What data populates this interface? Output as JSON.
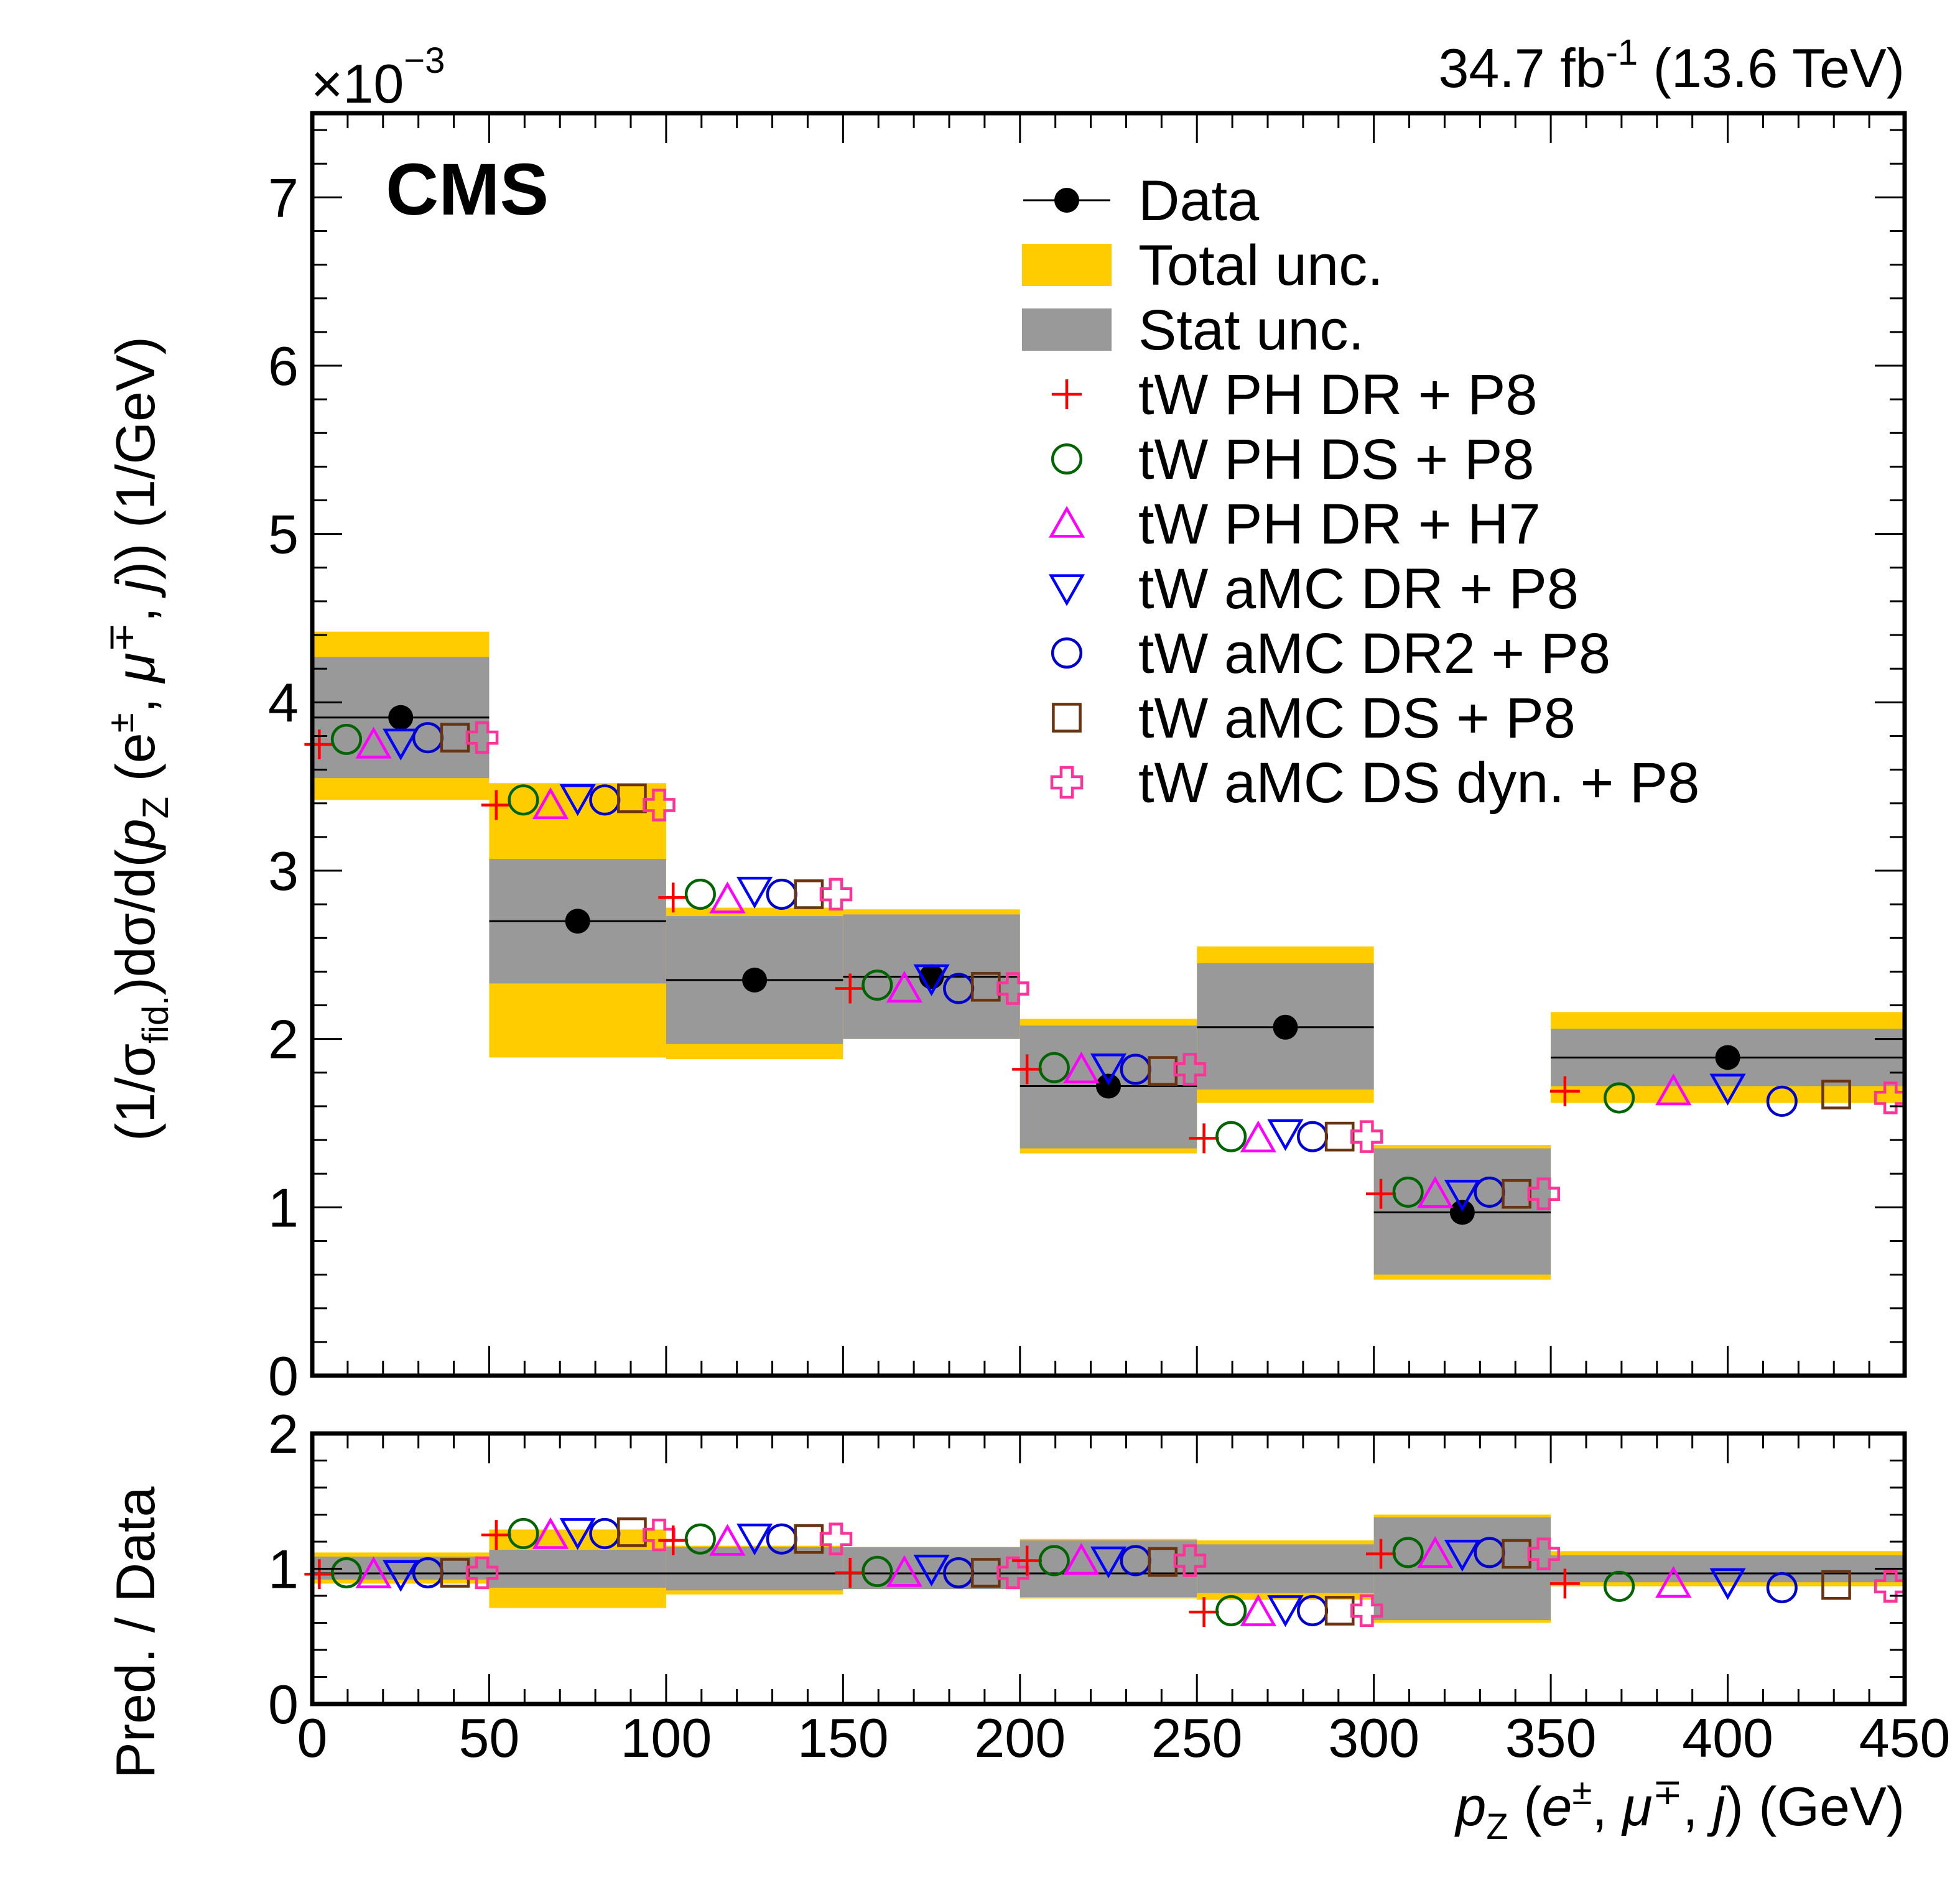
{
  "header": {
    "cms_label": "CMS",
    "lumi_label": "34.7 fb",
    "lumi_sup": "-1",
    "energy_label": " (13.6 TeV)",
    "exponent_base": "×10",
    "exponent_sup": "−3"
  },
  "colors": {
    "total_unc": "#ffcc00",
    "stat_unc": "#999999",
    "data": "#000000",
    "tw_ph_dr_p8": "#ff0000",
    "tw_ph_ds_p8": "#006400",
    "tw_ph_dr_h7": "#ff00ff",
    "tw_amc_dr_p8": "#0000ff",
    "tw_amc_dr2_p8": "#0000cd",
    "tw_amc_ds_p8": "#6b3410",
    "tw_amc_dsdyn_p8": "#ff3399"
  },
  "chart_data": {
    "type": "scatter",
    "xlabel": "p_Z (e±, μ∓, j) (GeV)",
    "xlim": [
      0,
      450
    ],
    "x_ticks": [
      "0",
      "50",
      "100",
      "150",
      "200",
      "250",
      "300",
      "350",
      "400",
      "450"
    ],
    "bin_edges": [
      0,
      50,
      100,
      150,
      200,
      250,
      300,
      350,
      450
    ],
    "top": {
      "ylabel": "(1/σ_fid.)dσ/d(p_Z (e±, μ∓, j)) (1/GeV)",
      "ylim": [
        0,
        7.5
      ],
      "y_ticks": [
        "0",
        "1",
        "2",
        "3",
        "4",
        "5",
        "6",
        "7"
      ],
      "data": [
        3.91,
        2.7,
        2.35,
        2.37,
        1.72,
        2.07,
        0.97,
        1.89
      ],
      "total_unc": [
        [
          3.42,
          4.42
        ],
        [
          1.89,
          3.52
        ],
        [
          1.88,
          2.78
        ],
        [
          2.0,
          2.77
        ],
        [
          1.32,
          2.12
        ],
        [
          1.62,
          2.55
        ],
        [
          0.57,
          1.37
        ],
        [
          1.62,
          2.16
        ]
      ],
      "stat_unc": [
        [
          3.55,
          4.27
        ],
        [
          2.33,
          3.07
        ],
        [
          1.97,
          2.73
        ],
        [
          2.0,
          2.74
        ],
        [
          1.35,
          2.08
        ],
        [
          1.7,
          2.45
        ],
        [
          0.6,
          1.35
        ],
        [
          1.72,
          2.06
        ]
      ],
      "series": [
        {
          "name": "tW PH DR + P8",
          "marker": "plus",
          "color_key": "tw_ph_dr_p8",
          "values": [
            3.75,
            3.39,
            2.84,
            2.3,
            1.82,
            1.41,
            1.08,
            1.69
          ]
        },
        {
          "name": "tW PH DS + P8",
          "marker": "circle",
          "color_key": "tw_ph_ds_p8",
          "values": [
            3.78,
            3.42,
            2.86,
            2.32,
            1.83,
            1.42,
            1.09,
            1.65
          ]
        },
        {
          "name": "tW PH DR + H7",
          "marker": "triangle-up",
          "color_key": "tw_ph_dr_h7",
          "values": [
            3.75,
            3.39,
            2.83,
            2.3,
            1.82,
            1.41,
            1.08,
            1.69
          ]
        },
        {
          "name": "tW aMC DR + P8",
          "marker": "triangle-down",
          "color_key": "tw_amc_dr_p8",
          "values": [
            3.76,
            3.43,
            2.88,
            2.36,
            1.83,
            1.44,
            1.08,
            1.71
          ]
        },
        {
          "name": "tW aMC DR2 + P8",
          "marker": "circle",
          "color_key": "tw_amc_dr2_p8",
          "values": [
            3.79,
            3.42,
            2.86,
            2.3,
            1.82,
            1.42,
            1.09,
            1.63
          ]
        },
        {
          "name": "tW aMC DS + P8",
          "marker": "square",
          "color_key": "tw_amc_ds_p8",
          "values": [
            3.79,
            3.43,
            2.86,
            2.31,
            1.81,
            1.42,
            1.08,
            1.67
          ]
        },
        {
          "name": "tW aMC DS dyn. + P8",
          "marker": "cross",
          "color_key": "tw_amc_dsdyn_p8",
          "values": [
            3.79,
            3.39,
            2.86,
            2.3,
            1.82,
            1.42,
            1.08,
            1.65
          ]
        }
      ]
    },
    "ratio": {
      "ylabel": "Pred. / Data",
      "ylim": [
        0,
        2
      ],
      "y_ticks": [
        "0",
        "1",
        "2"
      ],
      "total_unc": [
        [
          0.89,
          1.12
        ],
        [
          0.71,
          1.29
        ],
        [
          0.81,
          1.17
        ],
        [
          0.85,
          1.16
        ],
        [
          0.78,
          1.22
        ],
        [
          0.77,
          1.21
        ],
        [
          0.6,
          1.4
        ],
        [
          0.87,
          1.13
        ]
      ],
      "stat_unc": [
        [
          0.92,
          1.09
        ],
        [
          0.86,
          1.14
        ],
        [
          0.84,
          1.16
        ],
        [
          0.85,
          1.16
        ],
        [
          0.79,
          1.21
        ],
        [
          0.82,
          1.18
        ],
        [
          0.62,
          1.38
        ],
        [
          0.9,
          1.1
        ]
      ],
      "series": [
        {
          "name": "tW PH DR + P8",
          "marker": "plus",
          "color_key": "tw_ph_dr_p8",
          "values": [
            0.96,
            1.25,
            1.21,
            0.97,
            1.06,
            0.68,
            1.11,
            0.89
          ]
        },
        {
          "name": "tW PH DS + P8",
          "marker": "circle",
          "color_key": "tw_ph_ds_p8",
          "values": [
            0.97,
            1.26,
            1.22,
            0.98,
            1.06,
            0.69,
            1.12,
            0.87
          ]
        },
        {
          "name": "tW PH DR + H7",
          "marker": "triangle-up",
          "color_key": "tw_ph_dr_h7",
          "values": [
            0.96,
            1.25,
            1.2,
            0.97,
            1.06,
            0.68,
            1.11,
            0.89
          ]
        },
        {
          "name": "tW aMC DR + P8",
          "marker": "triangle-down",
          "color_key": "tw_amc_dr_p8",
          "values": [
            0.96,
            1.27,
            1.23,
            1.0,
            1.06,
            0.7,
            1.11,
            0.9
          ]
        },
        {
          "name": "tW aMC DR2 + P8",
          "marker": "circle",
          "color_key": "tw_amc_dr2_p8",
          "values": [
            0.97,
            1.26,
            1.22,
            0.97,
            1.06,
            0.69,
            1.12,
            0.86
          ]
        },
        {
          "name": "tW aMC DS + P8",
          "marker": "square",
          "color_key": "tw_amc_ds_p8",
          "values": [
            0.97,
            1.27,
            1.22,
            0.97,
            1.05,
            0.69,
            1.11,
            0.88
          ]
        },
        {
          "name": "tW aMC DS dyn. + P8",
          "marker": "cross",
          "color_key": "tw_amc_dsdyn_p8",
          "values": [
            0.97,
            1.25,
            1.22,
            0.97,
            1.06,
            0.69,
            1.11,
            0.87
          ]
        }
      ]
    },
    "legend": {
      "placement": "top-right",
      "entries": [
        {
          "label": "Data",
          "kind": "data"
        },
        {
          "label": "Total unc.",
          "kind": "box",
          "color_key": "total_unc"
        },
        {
          "label": "Stat unc.",
          "kind": "box",
          "color_key": "stat_unc"
        },
        {
          "label": "tW PH DR + P8",
          "kind": "marker",
          "marker": "plus",
          "color_key": "tw_ph_dr_p8"
        },
        {
          "label": "tW PH DS + P8",
          "kind": "marker",
          "marker": "circle",
          "color_key": "tw_ph_ds_p8"
        },
        {
          "label": "tW PH DR + H7",
          "kind": "marker",
          "marker": "triangle-up",
          "color_key": "tw_ph_dr_h7"
        },
        {
          "label": "tW aMC DR + P8",
          "kind": "marker",
          "marker": "triangle-down",
          "color_key": "tw_amc_dr_p8"
        },
        {
          "label": "tW aMC DR2 + P8",
          "kind": "marker",
          "marker": "circle",
          "color_key": "tw_amc_dr2_p8"
        },
        {
          "label": "tW aMC DS + P8",
          "kind": "marker",
          "marker": "square",
          "color_key": "tw_amc_ds_p8"
        },
        {
          "label": "tW aMC DS dyn. + P8",
          "kind": "marker",
          "marker": "cross",
          "color_key": "tw_amc_dsdyn_p8"
        }
      ]
    }
  }
}
